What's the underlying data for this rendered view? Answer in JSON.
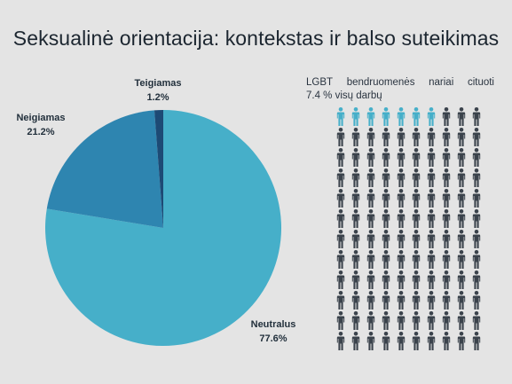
{
  "title": "Seksualinė orientacija: kontekstas ir balso suteikimas",
  "chart_data": {
    "type": "pie",
    "slices": [
      {
        "label": "Neutralus",
        "value": 77.6,
        "display": "77.6%",
        "color": "#46afc9"
      },
      {
        "label": "Neigiamas",
        "value": 21.2,
        "display": "21.2%",
        "color": "#2e85b0"
      },
      {
        "label": "Teigiamas",
        "value": 1.2,
        "display": "1.2%",
        "color": "#1d4a75"
      }
    ]
  },
  "infographic": {
    "caption_words": [
      "LGBT",
      "bendruomenės",
      "nariai",
      "cituoti"
    ],
    "caption_line2": "7.4 % visų darbų",
    "rows": 12,
    "cols": 10,
    "highlighted": 7,
    "highlight_color": "#46afc9",
    "base_color": "#3b434c"
  }
}
